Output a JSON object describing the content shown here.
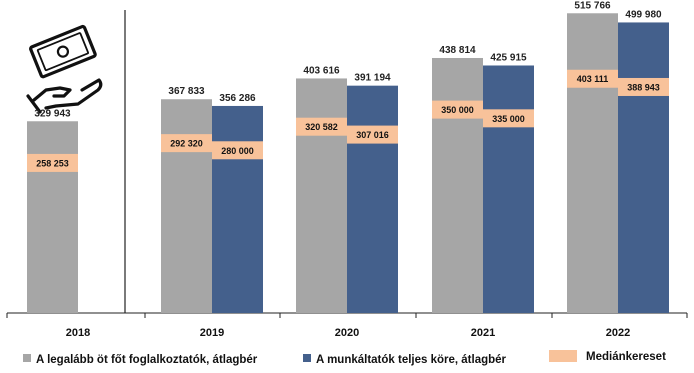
{
  "chart_data": {
    "type": "bar",
    "categories": [
      "2018",
      "2019",
      "2020",
      "2021",
      "2022"
    ],
    "series": [
      {
        "name": "A legalább öt főt foglalkoztatók, átlagbér",
        "color": "#a6a6a6",
        "values": [
          329943,
          367833,
          403616,
          438814,
          515766
        ],
        "labels": [
          "329 943",
          "367 833",
          "403 616",
          "438 814",
          "515 766"
        ],
        "median": [
          258253,
          292320,
          320582,
          350000,
          403111
        ],
        "median_labels": [
          "258 253",
          "292 320",
          "320 582",
          "350 000",
          "403 111"
        ]
      },
      {
        "name": "A munkáltatók teljes köre, átlagbér",
        "color": "#44608c",
        "values": [
          null,
          356286,
          391194,
          425915,
          499980
        ],
        "labels": [
          "",
          "356 286",
          "391 194",
          "425 915",
          "499 980"
        ],
        "median": [
          null,
          280000,
          307016,
          335000,
          388943
        ],
        "median_labels": [
          "",
          "280 000",
          "307 016",
          "335 000",
          "388 943"
        ]
      }
    ],
    "median_series": {
      "name": "Mediánkereset",
      "color": "#f8c29a"
    },
    "ylim": [
      0,
      530000
    ],
    "grid": false,
    "legend_position": "bottom",
    "icon": "money-hand-icon"
  }
}
